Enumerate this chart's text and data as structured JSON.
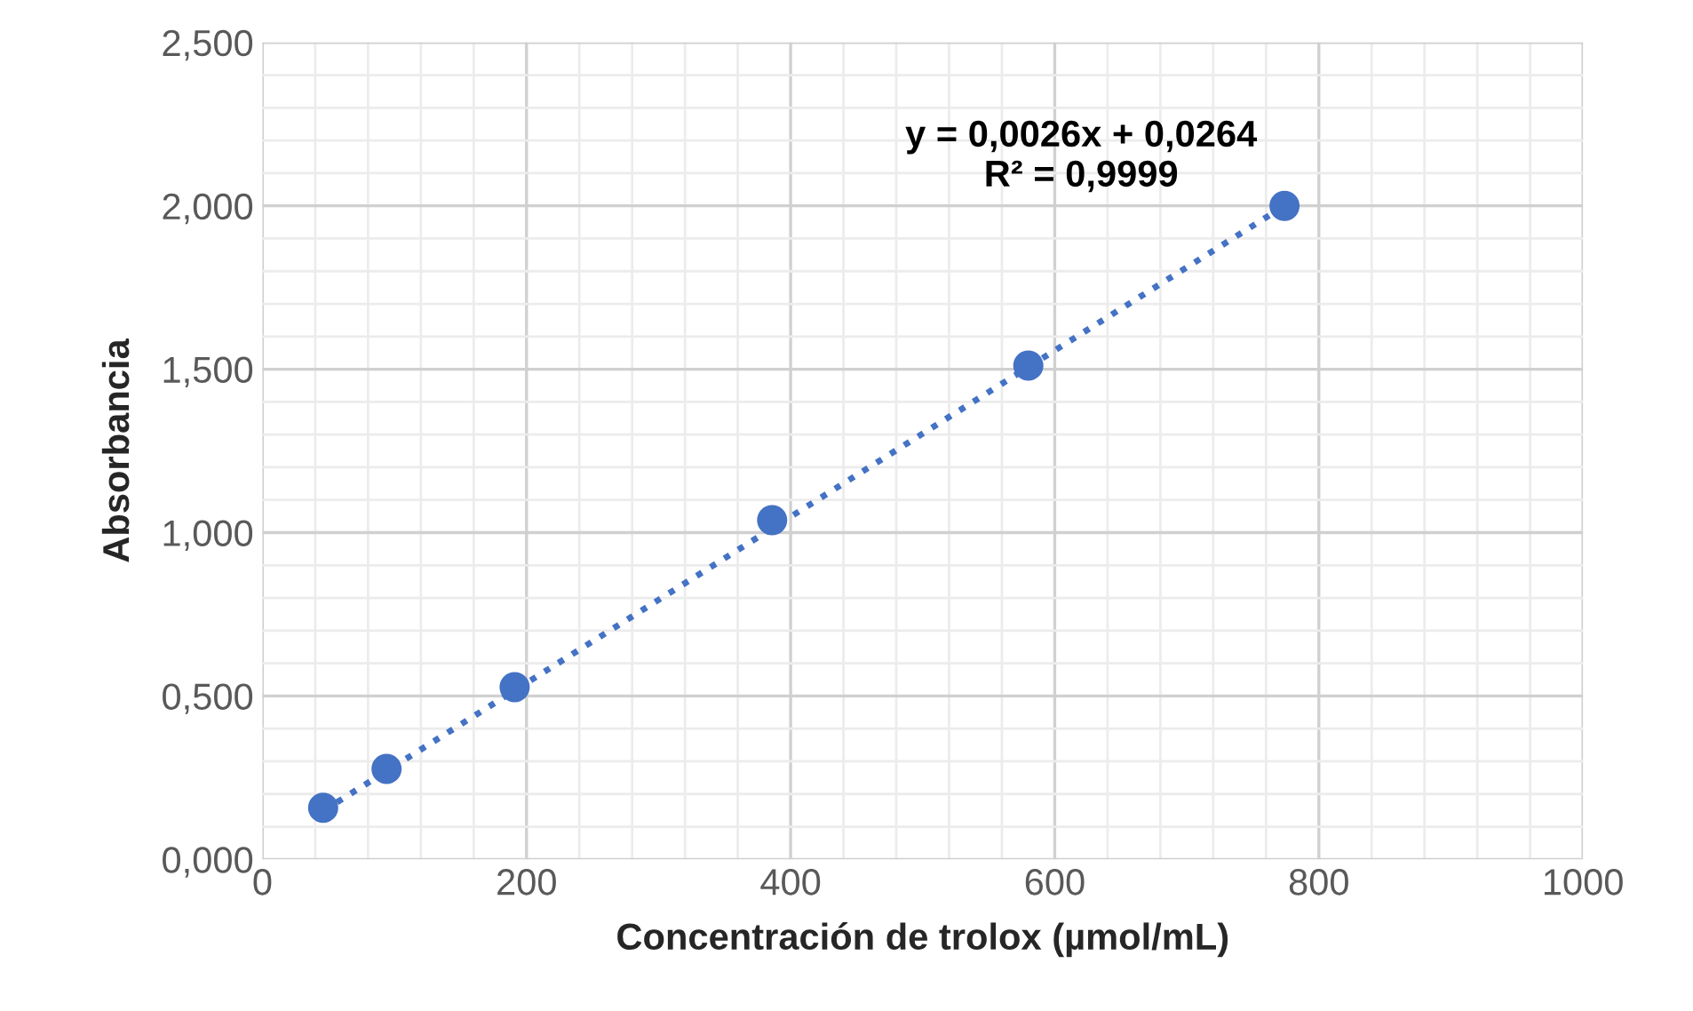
{
  "chart_data": {
    "type": "scatter",
    "xlabel": "Concentración de trolox (µmol/mL)",
    "ylabel": "Absorbancia",
    "series": [
      {
        "color": "#4472c4",
        "marker": "circle",
        "x": [
          46,
          94,
          191,
          386,
          580,
          774
        ],
        "values": [
          0.158,
          0.277,
          0.527,
          1.038,
          1.511,
          2.0
        ]
      },
      {
        "type": "line",
        "color": "#4472c4",
        "line_style": "dotted",
        "x": [
          46,
          774
        ],
        "values": [
          0.148,
          2.0
        ]
      }
    ],
    "annotations": [
      "y = 0,0026x + 0,0264\nR² = 0,9999"
    ],
    "xlim": [
      0,
      1000
    ],
    "xticks": [
      0,
      200,
      400,
      600,
      800,
      1000
    ],
    "ylim": [
      0,
      2.5
    ],
    "yticks": [
      {
        "value": 0,
        "label": "0,000"
      },
      {
        "value": 0.5,
        "label": "0,500"
      },
      {
        "value": 1,
        "label": "1,000"
      },
      {
        "value": 1.5,
        "label": "1,500"
      },
      {
        "value": 2,
        "label": "2,000"
      },
      {
        "value": 2.5,
        "label": "2,500"
      }
    ],
    "grid": true,
    "legend": false
  }
}
